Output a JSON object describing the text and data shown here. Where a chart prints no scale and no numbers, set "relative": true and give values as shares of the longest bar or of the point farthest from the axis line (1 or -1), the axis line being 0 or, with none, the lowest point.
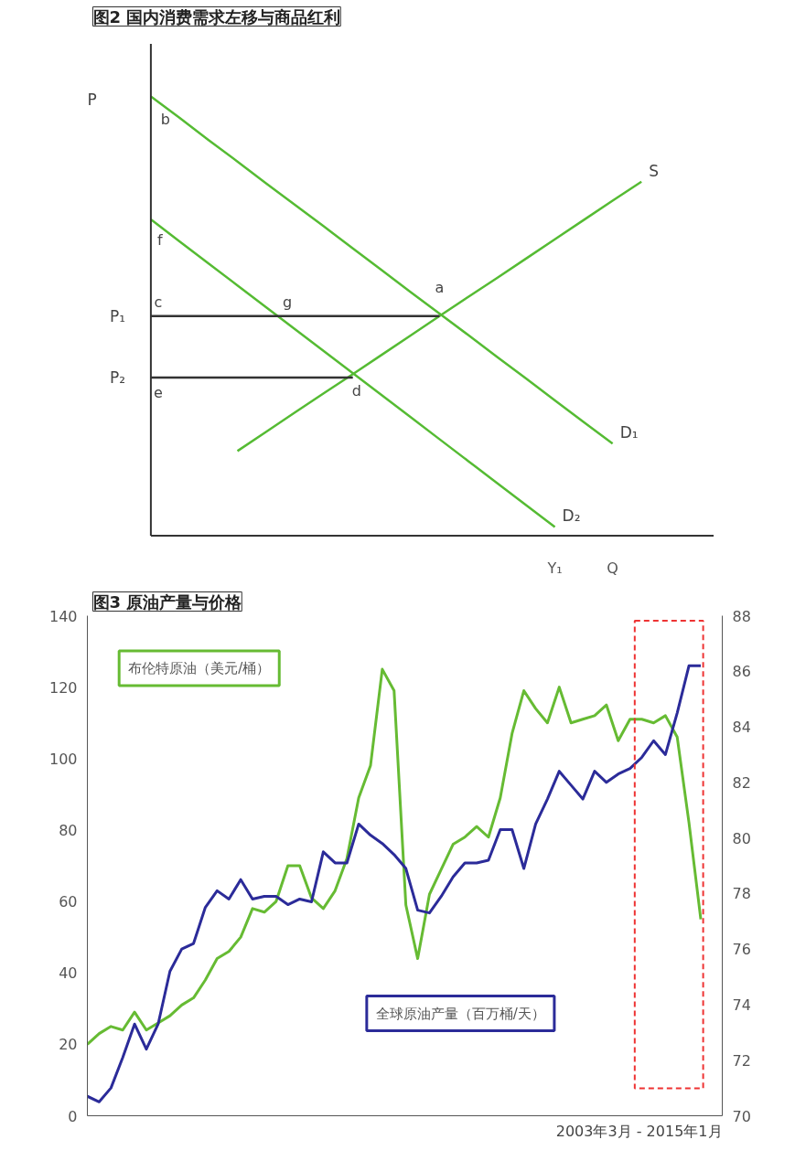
{
  "chart_data": [
    {
      "type": "line",
      "title": "图2 国内消费需求左移与商品红利",
      "relative": true,
      "ylabel": "P",
      "tick_labels": "x",
      "grid": false,
      "categories": [
        null,
        null,
        null,
        null,
        null,
        null,
        null,
        null,
        null,
        null,
        null,
        null,
        null,
        null,
        "Y₁",
        null,
        "Q",
        null,
        null,
        null
      ],
      "series": [
        {
          "name": "D₁",
          "color": "#55bb33",
          "values": [
            1.0,
            0.951,
            0.901,
            0.852,
            0.802,
            0.753,
            0.704,
            0.654,
            0.605,
            0.555,
            0.506,
            0.457,
            0.407,
            0.358,
            0.308,
            0.259,
            0.21,
            null,
            null,
            null
          ]
        },
        {
          "name": "D₂",
          "color": "#55bb33",
          "values": [
            0.72,
            0.67,
            0.62,
            0.57,
            0.52,
            0.47,
            0.42,
            0.37,
            0.32,
            0.27,
            0.22,
            0.17,
            0.12,
            0.07,
            0.02,
            null,
            null,
            null,
            null,
            null
          ]
        },
        {
          "name": "S",
          "color": "#55bb33",
          "values": [
            null,
            null,
            null,
            0.193,
            0.237,
            0.281,
            0.325,
            0.368,
            0.412,
            0.456,
            0.5,
            0.544,
            0.587,
            0.631,
            0.675,
            0.719,
            0.763,
            0.806,
            null,
            null
          ]
        },
        {
          "name": "P₁",
          "color": "#333333",
          "values": [
            0.5,
            0.5,
            0.5,
            0.5,
            0.5,
            0.5,
            0.5,
            0.5,
            0.5,
            0.5,
            0.5,
            null,
            null,
            null,
            null,
            null,
            null,
            null,
            null,
            null
          ]
        },
        {
          "name": "P₂",
          "color": "#333333",
          "values": [
            0.36,
            0.36,
            0.36,
            0.36,
            0.36,
            0.36,
            0.36,
            0.36,
            null,
            null,
            null,
            null,
            null,
            null,
            null,
            null,
            null,
            null,
            null,
            null
          ]
        }
      ],
      "annotations": [
        "b",
        "f",
        "c",
        "e",
        "a",
        "g",
        "d"
      ]
    },
    {
      "type": "line",
      "title": "图3 原油产量与价格",
      "xlabel": "2003年3月 - 2015年1月",
      "grid": false,
      "categories": [
        null,
        null,
        null,
        null,
        null,
        null,
        null,
        null,
        null,
        null,
        null,
        null,
        null,
        null,
        null,
        null,
        null,
        null,
        null,
        null,
        null,
        null,
        null,
        null,
        null,
        null,
        null,
        null,
        null,
        null,
        null,
        null,
        null,
        null,
        null,
        null,
        null,
        null,
        null,
        null,
        null,
        null,
        null,
        null,
        null,
        null,
        null,
        null,
        null,
        null,
        null,
        null,
        null
      ],
      "ylim": [
        0,
        140
      ],
      "yticks": [
        0,
        20,
        40,
        60,
        80,
        100,
        120,
        140
      ],
      "y2lim": [
        70,
        88
      ],
      "y2ticks": [
        70,
        72,
        74,
        76,
        78,
        80,
        82,
        84,
        86,
        88
      ],
      "series": [
        {
          "name": "布伦特原油（美元/桶）",
          "color": "#66bb33",
          "values": [
            20,
            23,
            25,
            24,
            29,
            24,
            26,
            28,
            31,
            33,
            38,
            44,
            46,
            50,
            58,
            57,
            60,
            70,
            70,
            61,
            58,
            63,
            72,
            89,
            98,
            125,
            119,
            59,
            44,
            62,
            69,
            76,
            78,
            81,
            78,
            89,
            107,
            119,
            114,
            110,
            120,
            110,
            111,
            112,
            115,
            105,
            111,
            111,
            110,
            112,
            106,
            82,
            55
          ]
        },
        {
          "name": "全球原油产量（百万桶/天）",
          "color": "#2b2b99",
          "axis": "y2",
          "values": [
            70.7,
            70.5,
            71.0,
            72.1,
            73.3,
            72.4,
            73.3,
            75.2,
            76.0,
            76.2,
            77.5,
            78.1,
            77.8,
            78.5,
            77.8,
            77.9,
            77.9,
            77.6,
            77.8,
            77.7,
            79.5,
            79.1,
            79.1,
            80.5,
            80.1,
            79.8,
            79.4,
            78.9,
            77.4,
            77.3,
            77.9,
            78.6,
            79.1,
            79.1,
            79.2,
            80.3,
            80.3,
            78.9,
            80.5,
            81.4,
            82.4,
            81.9,
            81.4,
            82.4,
            82.0,
            82.3,
            82.5,
            82.9,
            83.5,
            83.0,
            84.5,
            86.2,
            86.2
          ]
        }
      ]
    }
  ]
}
